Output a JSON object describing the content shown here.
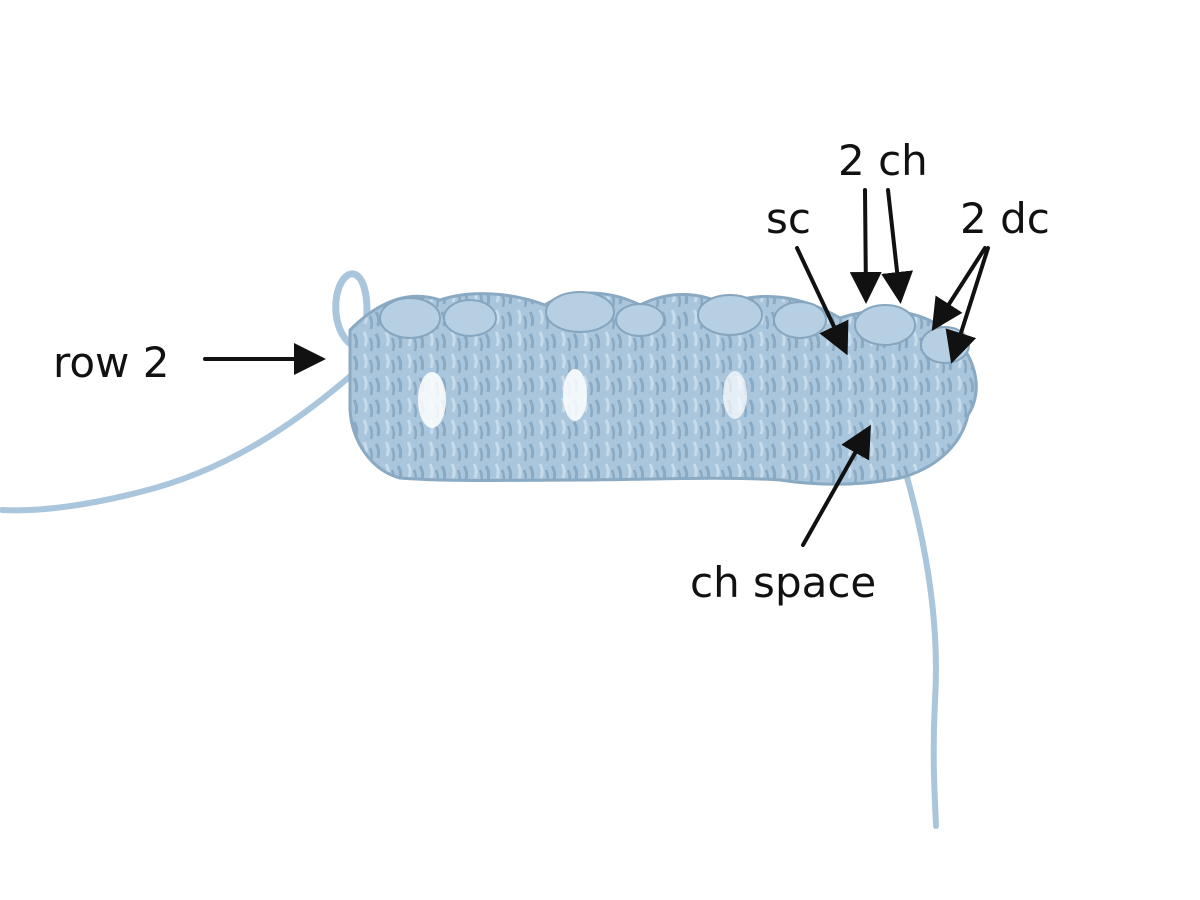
{
  "labels": {
    "row2": "row 2",
    "sc": "sc",
    "two_ch": "2 ch",
    "two_dc": "2 dc",
    "ch_space": "ch space"
  },
  "colors": {
    "background": "#ffffff",
    "yarn": "#a9c6dc",
    "yarn_shadow": "#7f9fb9",
    "yarn_highlight": "#cfe0ee",
    "arrow": "#111111"
  }
}
